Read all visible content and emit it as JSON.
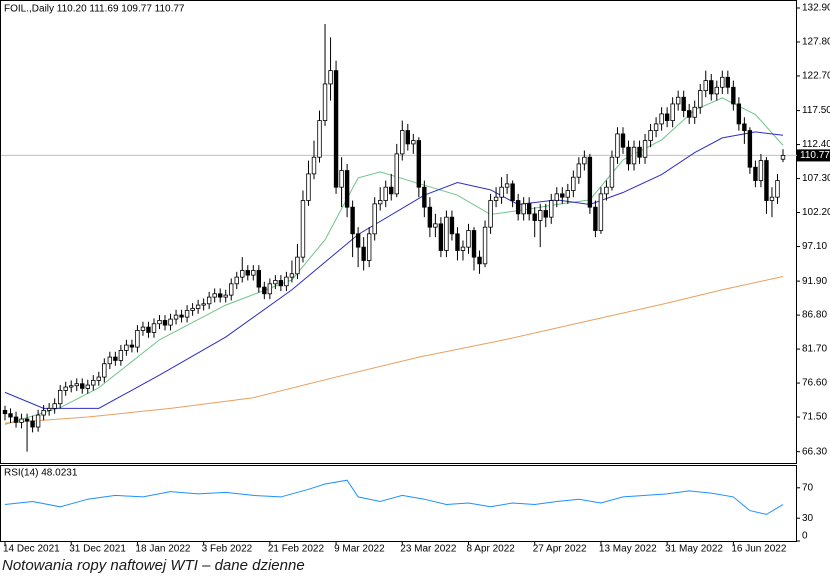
{
  "caption": "Notowania ropy naftowej WTI – dane dzienne",
  "chart_data": [
    {
      "type": "candlestick",
      "title": "FOIL.,Daily 110.20 111.69 109.77 110.77",
      "categories": [
        "14 Dec 2021",
        null,
        null,
        null,
        null,
        null,
        null,
        null,
        null,
        null,
        null,
        null,
        "31 Dec 2021",
        null,
        null,
        null,
        null,
        null,
        null,
        null,
        null,
        null,
        null,
        null,
        "18 Jan 2022",
        null,
        null,
        null,
        null,
        null,
        null,
        null,
        null,
        null,
        null,
        null,
        "3 Feb 2022",
        null,
        null,
        null,
        null,
        null,
        null,
        null,
        null,
        null,
        null,
        null,
        "21 Feb 2022",
        null,
        null,
        null,
        null,
        null,
        null,
        null,
        null,
        null,
        null,
        null,
        "9 Mar 2022",
        null,
        null,
        null,
        null,
        null,
        null,
        null,
        null,
        null,
        null,
        null,
        "23 Mar 2022",
        null,
        null,
        null,
        null,
        null,
        null,
        null,
        null,
        null,
        null,
        null,
        "8 Apr 2022",
        null,
        null,
        null,
        null,
        null,
        null,
        null,
        null,
        null,
        null,
        null,
        "27 Apr 2022",
        null,
        null,
        null,
        null,
        null,
        null,
        null,
        null,
        null,
        null,
        null,
        "13 May 2022",
        null,
        null,
        null,
        null,
        null,
        null,
        null,
        null,
        null,
        null,
        null,
        "31 May 2022",
        null,
        null,
        null,
        null,
        null,
        null,
        null,
        null,
        null,
        null,
        null,
        "16 Jun 2022",
        null,
        null,
        null,
        null,
        null,
        null,
        null,
        null,
        null
      ],
      "open": [
        72.5,
        72.0,
        71.5,
        70.7,
        71.2,
        70.9,
        70.0,
        71.8,
        72.5,
        72.8,
        73.5,
        75.5,
        76.0,
        76.2,
        76.5,
        75.8,
        76.3,
        77.0,
        77.5,
        79.5,
        80.5,
        80.0,
        81.5,
        82.3,
        82.0,
        84.5,
        85.0,
        84.2,
        85.5,
        86.0,
        85.3,
        86.2,
        86.8,
        86.5,
        87.5,
        87.8,
        88.3,
        88.5,
        89.5,
        90.0,
        89.5,
        89.8,
        91.5,
        92.5,
        93.5,
        92.8,
        93.5,
        91.0,
        90.0,
        91.5,
        92.0,
        91.2,
        92.5,
        93.0,
        95.5,
        104.0,
        108.0,
        110.5,
        116.0,
        121.5,
        123.5,
        106.0,
        108.5,
        103.0,
        99.0,
        97.0,
        95.0,
        99.0,
        103.5,
        104.0,
        106.0,
        105.0,
        111.0,
        114.5,
        112.5,
        113.0,
        106.0,
        103.0,
        100.0,
        100.5,
        96.5,
        101.5,
        99.0,
        96.5,
        97.0,
        99.5,
        95.5,
        94.5,
        100.0,
        104.0,
        104.5,
        106.0,
        106.5,
        104.0,
        102.0,
        103.5,
        102.0,
        101.0,
        102.5,
        101.5,
        104.0,
        105.0,
        104.5,
        105.5,
        107.5,
        109.5,
        110.5,
        103.0,
        99.5,
        105.0,
        106.0,
        110.5,
        114.0,
        112.0,
        109.5,
        112.0,
        110.5,
        113.0,
        114.5,
        115.5,
        117.0,
        116.0,
        118.5,
        119.5,
        117.5,
        116.5,
        118.0,
        120.5,
        122.0,
        120.0,
        121.0,
        122.5,
        121.0,
        118.5,
        115.5,
        114.5,
        109.0,
        107.0,
        110.0,
        104.0,
        104.5,
        110.2
      ],
      "high": [
        73.2,
        72.8,
        72.3,
        72.0,
        72.0,
        71.7,
        72.6,
        73.3,
        73.6,
        74.3,
        76.3,
        76.8,
        77.0,
        77.3,
        77.3,
        77.1,
        77.8,
        78.3,
        80.3,
        81.3,
        81.3,
        82.3,
        83.1,
        83.1,
        85.3,
        85.8,
        85.8,
        86.3,
        86.8,
        86.8,
        87.0,
        87.6,
        87.6,
        88.3,
        88.6,
        89.1,
        89.3,
        90.3,
        90.8,
        90.8,
        90.6,
        92.3,
        93.3,
        95.5,
        94.3,
        94.3,
        94.3,
        91.8,
        92.3,
        92.8,
        92.8,
        93.3,
        95.0,
        97.5,
        105.5,
        110.0,
        113.0,
        117.5,
        130.5,
        128.5,
        125.0,
        110.5,
        109.5,
        104.0,
        100.0,
        98.5,
        100.0,
        104.5,
        106.0,
        107.0,
        108.0,
        112.5,
        116.0,
        115.5,
        114.0,
        113.5,
        107.0,
        104.5,
        102.0,
        101.5,
        102.5,
        102.5,
        100.0,
        98.0,
        100.5,
        100.0,
        96.5,
        101.0,
        105.0,
        106.0,
        107.5,
        108.0,
        107.0,
        105.0,
        104.5,
        104.5,
        103.0,
        103.5,
        103.5,
        105.0,
        106.0,
        106.0,
        106.5,
        108.5,
        110.5,
        111.5,
        111.0,
        104.0,
        106.0,
        107.0,
        111.5,
        115.0,
        115.0,
        113.0,
        113.0,
        113.0,
        114.0,
        115.5,
        116.5,
        118.0,
        118.0,
        119.5,
        120.5,
        120.5,
        118.5,
        119.0,
        121.5,
        123.5,
        123.0,
        122.0,
        123.5,
        123.5,
        122.0,
        119.5,
        116.5,
        115.0,
        110.0,
        111.0,
        110.5,
        106.0,
        108.0,
        111.69
      ],
      "low": [
        71.0,
        70.6,
        69.9,
        69.8,
        66.3,
        69.2,
        69.3,
        71.0,
        71.7,
        72.0,
        72.8,
        74.7,
        75.2,
        75.4,
        75.0,
        75.0,
        75.5,
        76.2,
        76.7,
        78.7,
        79.2,
        79.2,
        80.7,
        81.2,
        81.2,
        83.7,
        83.4,
        83.4,
        84.7,
        84.5,
        84.5,
        85.4,
        85.7,
        85.7,
        86.7,
        87.0,
        87.5,
        87.7,
        88.7,
        88.7,
        88.7,
        89.0,
        90.7,
        91.7,
        92.0,
        92.0,
        90.2,
        89.2,
        89.2,
        90.7,
        90.4,
        90.4,
        91.7,
        92.2,
        94.7,
        103.2,
        107.2,
        109.7,
        115.2,
        119.0,
        105.0,
        103.0,
        101.5,
        95.5,
        94.0,
        93.5,
        94.0,
        98.0,
        102.5,
        103.0,
        104.0,
        104.5,
        110.0,
        111.5,
        111.0,
        104.5,
        101.5,
        98.5,
        98.5,
        95.5,
        95.5,
        98.0,
        95.0,
        95.0,
        96.0,
        93.5,
        93.0,
        94.0,
        99.0,
        103.0,
        103.5,
        105.0,
        103.0,
        101.0,
        101.0,
        101.0,
        98.5,
        97.0,
        100.0,
        100.5,
        103.0,
        103.5,
        103.5,
        104.5,
        106.5,
        108.5,
        102.0,
        98.5,
        99.0,
        104.0,
        105.5,
        109.5,
        111.0,
        108.5,
        108.5,
        109.5,
        109.5,
        112.0,
        113.5,
        114.5,
        115.0,
        115.0,
        117.5,
        116.5,
        115.5,
        115.5,
        117.0,
        119.5,
        119.0,
        119.0,
        120.0,
        120.0,
        117.5,
        114.5,
        112.5,
        108.0,
        106.0,
        106.0,
        102.0,
        101.5,
        103.5,
        109.77
      ],
      "close": [
        72.0,
        71.5,
        70.7,
        71.2,
        70.9,
        70.0,
        71.8,
        72.5,
        72.8,
        73.5,
        75.5,
        76.0,
        76.2,
        76.5,
        75.8,
        76.3,
        77.0,
        77.5,
        79.5,
        80.5,
        80.0,
        81.5,
        82.3,
        82.0,
        84.5,
        85.0,
        84.2,
        85.5,
        86.0,
        85.3,
        86.2,
        86.8,
        86.5,
        87.5,
        87.8,
        88.3,
        88.5,
        89.5,
        90.0,
        89.5,
        89.8,
        91.5,
        92.5,
        93.5,
        92.8,
        93.5,
        91.0,
        90.0,
        91.5,
        92.0,
        91.2,
        92.5,
        93.0,
        95.5,
        104.0,
        108.0,
        110.5,
        116.0,
        121.5,
        123.5,
        106.0,
        108.5,
        103.0,
        99.0,
        97.0,
        95.0,
        99.0,
        103.5,
        104.0,
        106.0,
        105.0,
        111.0,
        114.5,
        112.5,
        113.0,
        106.0,
        103.0,
        100.0,
        100.5,
        96.5,
        101.5,
        99.0,
        96.5,
        97.0,
        99.5,
        95.5,
        94.5,
        100.0,
        104.0,
        104.5,
        106.0,
        106.5,
        104.0,
        102.0,
        103.5,
        102.0,
        101.0,
        102.5,
        101.5,
        104.0,
        105.0,
        104.5,
        105.5,
        107.5,
        109.5,
        110.5,
        103.0,
        99.5,
        105.0,
        106.0,
        110.5,
        114.0,
        112.0,
        109.5,
        112.0,
        110.5,
        113.0,
        114.5,
        115.5,
        117.0,
        116.0,
        118.5,
        119.5,
        117.5,
        116.5,
        118.0,
        120.5,
        122.0,
        120.0,
        121.0,
        122.5,
        121.0,
        118.5,
        115.5,
        114.5,
        109.0,
        107.0,
        110.0,
        104.0,
        104.5,
        107.0,
        110.77
      ],
      "up_color": "#ffffff",
      "down_color": "#000000",
      "series": [
        {
          "color": "#6fc48a",
          "x": [
            0,
            10,
            17,
            28,
            40,
            52,
            58,
            64,
            68,
            76,
            82,
            88,
            94,
            100,
            106,
            112,
            119,
            125,
            130,
            136,
            141
          ],
          "values": [
            70.4,
            72.9,
            75.9,
            83.1,
            88.3,
            92.1,
            98.1,
            107.4,
            108.3,
            106.3,
            104.8,
            101.9,
            102.6,
            103.4,
            104.1,
            110.1,
            113.1,
            117.6,
            119.4,
            116.9,
            112.3
          ]
        },
        {
          "color": "#2c2cc8",
          "x": [
            0,
            7,
            17,
            28,
            40,
            52,
            64,
            76,
            82,
            88,
            93,
            100,
            106,
            112,
            119,
            125,
            130,
            136,
            141
          ],
          "values": [
            75.2,
            72.8,
            72.8,
            77.8,
            83.5,
            90.6,
            98.9,
            104.8,
            106.7,
            105.6,
            103.4,
            104.1,
            103.4,
            105.2,
            107.9,
            111.2,
            113.4,
            114.3,
            113.8
          ]
        },
        {
          "color": "#e8a060",
          "x": [
            0,
            15,
            30,
            45,
            60,
            75,
            90,
            105,
            120,
            130,
            141
          ],
          "values": [
            70.6,
            71.5,
            72.8,
            74.4,
            77.5,
            80.5,
            83.0,
            85.8,
            88.6,
            90.6,
            92.6
          ]
        }
      ],
      "last_price": {
        "value": 110.77,
        "label": "110.77"
      },
      "ylim": [
        64.6,
        134.1
      ],
      "yticks": [
        {
          "value": 132.9,
          "label": "132.90"
        },
        {
          "value": 127.8,
          "label": "127.80"
        },
        {
          "value": 122.7,
          "label": "122.70"
        },
        {
          "value": 117.5,
          "label": "117.50"
        },
        {
          "value": 112.4,
          "label": "112.40"
        },
        {
          "value": 107.3,
          "label": "107.30"
        },
        {
          "value": 102.2,
          "label": "102.20"
        },
        {
          "value": 97.1,
          "label": "97.10"
        },
        {
          "value": 91.9,
          "label": "91.90"
        },
        {
          "value": 86.8,
          "label": "86.80"
        },
        {
          "value": 81.7,
          "label": "81.70"
        },
        {
          "value": 76.6,
          "label": "76.60"
        },
        {
          "value": 71.5,
          "label": "71.50"
        },
        {
          "value": 66.3,
          "label": "66.30"
        }
      ]
    },
    {
      "type": "line",
      "title": "RSI(14) 48.0231",
      "series": [
        {
          "color": "#1e90ff",
          "x": [
            0,
            5,
            10,
            15,
            20,
            25,
            30,
            35,
            40,
            45,
            50,
            55,
            58,
            62,
            64,
            68,
            72,
            76,
            80,
            84,
            88,
            92,
            96,
            100,
            104,
            108,
            112,
            116,
            120,
            124,
            128,
            132,
            135,
            138,
            141
          ],
          "values": [
            48,
            52,
            45,
            55,
            60,
            58,
            65,
            62,
            64,
            60,
            58,
            68,
            75,
            80,
            58,
            52,
            60,
            55,
            48,
            50,
            45,
            50,
            48,
            52,
            55,
            50,
            58,
            60,
            62,
            66,
            63,
            58,
            40,
            35,
            48
          ]
        }
      ],
      "ylim": [
        0,
        100
      ],
      "yticks": [
        0,
        30,
        70
      ]
    }
  ]
}
